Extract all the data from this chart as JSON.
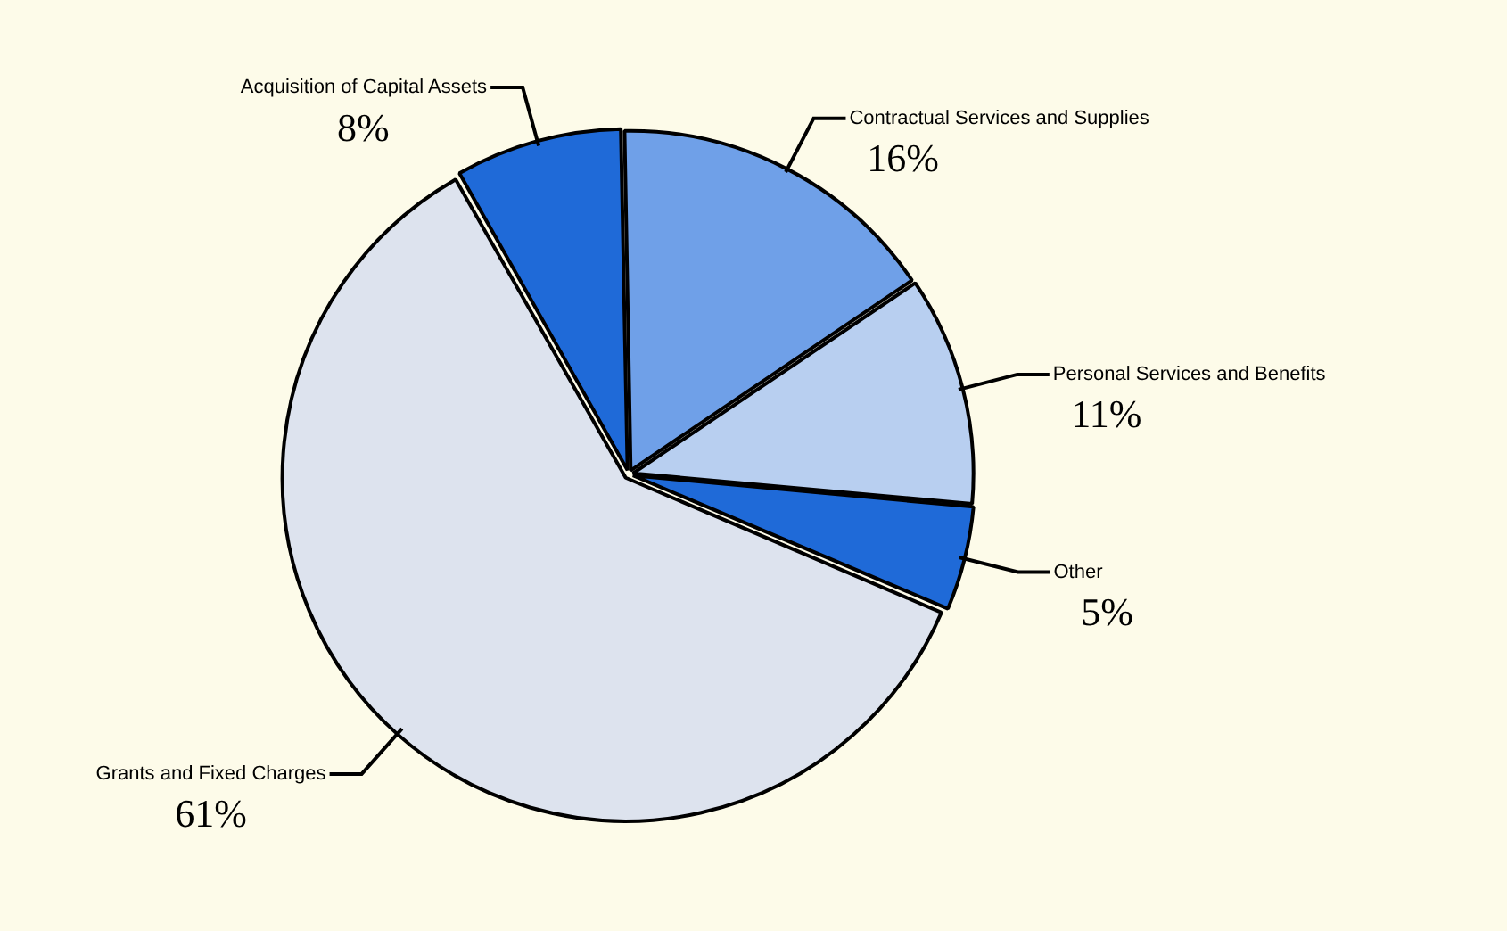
{
  "chart_data": {
    "type": "pie",
    "categories": [
      "Grants and Fixed Charges",
      "Acquisition of Capital Assets",
      "Contractual Services and Supplies",
      "Personal Services and Benefits",
      "Other"
    ],
    "values": [
      61,
      8,
      16,
      11,
      5
    ],
    "value_labels": [
      "61%",
      "8%",
      "16%",
      "11%",
      "5%"
    ],
    "colors": [
      "#dde3ee",
      "#1f6ad8",
      "#6fa0e8",
      "#b8cff0",
      "#1f6ad8"
    ],
    "legend": false
  }
}
